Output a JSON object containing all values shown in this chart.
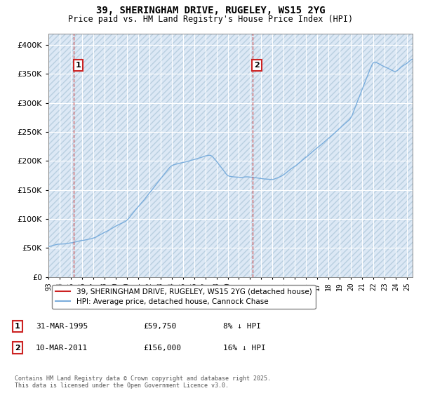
{
  "title_line1": "39, SHERINGHAM DRIVE, RUGELEY, WS15 2YG",
  "title_line2": "Price paid vs. HM Land Registry's House Price Index (HPI)",
  "background_color": "#ffffff",
  "plot_bg_color": "#dce8f5",
  "hatch_color": "#b8cfe0",
  "grid_color": "#ffffff",
  "hpi_color": "#7aaddc",
  "price_color": "#cc2222",
  "dashed_color": "#cc4444",
  "legend_hpi": "HPI: Average price, detached house, Cannock Chase",
  "legend_price": "39, SHERINGHAM DRIVE, RUGELEY, WS15 2YG (detached house)",
  "ann1_label": "31-MAR-1995",
  "ann1_price": "£59,750",
  "ann1_hpi": "8% ↓ HPI",
  "ann2_label": "10-MAR-2011",
  "ann2_price": "£156,000",
  "ann2_hpi": "16% ↓ HPI",
  "footnote": "Contains HM Land Registry data © Crown copyright and database right 2025.\nThis data is licensed under the Open Government Licence v3.0.",
  "ylim_min": 0,
  "ylim_max": 420000,
  "yticks": [
    0,
    50000,
    100000,
    150000,
    200000,
    250000,
    300000,
    350000,
    400000
  ],
  "year_sale1": 1995.25,
  "year_sale2": 2011.2,
  "price_sale1": 59750,
  "price_sale2": 156000
}
